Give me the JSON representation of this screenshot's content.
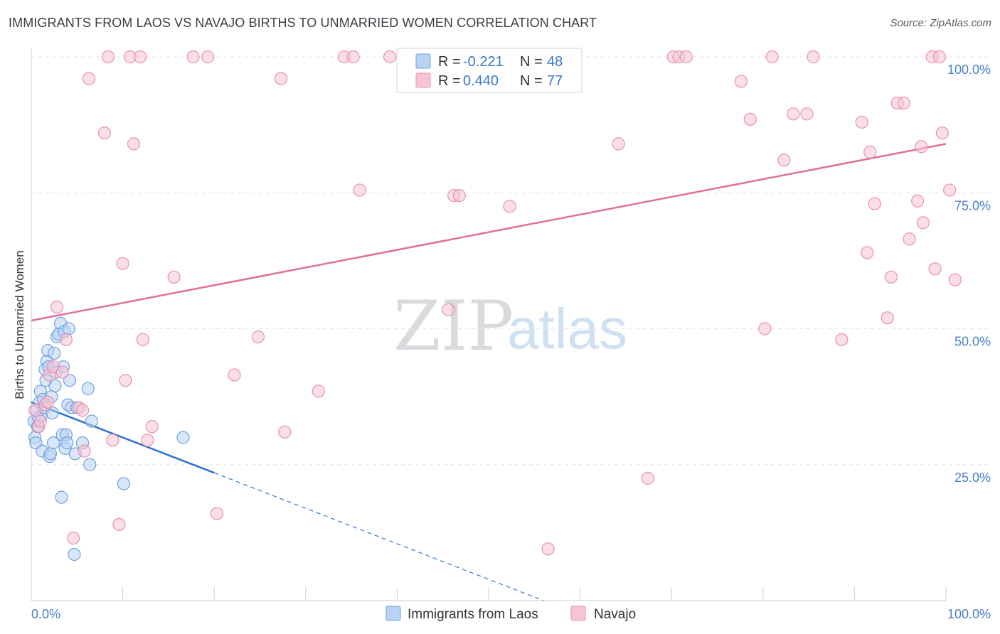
{
  "title": "IMMIGRANTS FROM LAOS VS NAVAJO BIRTHS TO UNMARRIED WOMEN CORRELATION CHART",
  "source": "Source: ZipAtlas.com",
  "watermark": {
    "zip": "ZIP",
    "atlas": "atlas"
  },
  "colors": {
    "blue": "#6fa3e0",
    "blue_fill": "#b8d2f3",
    "blue_line": "#2f72d2",
    "pink": "#ea8faf",
    "pink_fill": "#f6c5d5",
    "pink_line": "#e07098",
    "grid": "#e3e3e3",
    "axis_text": "#4a7fc4"
  },
  "legend": {
    "r_label": "R = ",
    "n_label": "N = ",
    "items": [
      {
        "r": "-0.221",
        "n": "48"
      },
      {
        "r": "0.440",
        "n": "77"
      }
    ]
  },
  "chart_data": {
    "type": "scatter",
    "title": "IMMIGRANTS FROM LAOS VS NAVAJO BIRTHS TO UNMARRIED WOMEN CORRELATION CHART",
    "xlabel": "",
    "ylabel": "Births to Unmarried Women",
    "xlim": [
      0,
      100
    ],
    "ylim": [
      0,
      100
    ],
    "x_tick_labels": [
      "0.0%",
      "100.0%"
    ],
    "y_ticks": [
      25,
      50,
      75,
      100
    ],
    "y_tick_labels": [
      "25.0%",
      "50.0%",
      "75.0%",
      "100.0%"
    ],
    "grid": "horizontal dashed",
    "legend_placement": "top-center",
    "series": [
      {
        "name": "Immigrants from Laos",
        "r": -0.221,
        "n": 48,
        "trend": {
          "x0": 0,
          "y0": 36.5,
          "x1": 20,
          "y1": 23.5,
          "dashed_to_x": 56,
          "dashed_to_y": 0
        },
        "points": [
          [
            0.3,
            33
          ],
          [
            0.4,
            30
          ],
          [
            0.5,
            29
          ],
          [
            0.6,
            35
          ],
          [
            0.7,
            32
          ],
          [
            0.8,
            33.5
          ],
          [
            0.9,
            36.5
          ],
          [
            1.0,
            38.5
          ],
          [
            1.1,
            34
          ],
          [
            1.2,
            27.5
          ],
          [
            1.3,
            37
          ],
          [
            1.4,
            35.5
          ],
          [
            1.5,
            42.5
          ],
          [
            1.6,
            40.5
          ],
          [
            1.7,
            44
          ],
          [
            1.8,
            46
          ],
          [
            1.9,
            43
          ],
          [
            2.0,
            26.5
          ],
          [
            2.1,
            27
          ],
          [
            2.2,
            37.5
          ],
          [
            2.3,
            34.5
          ],
          [
            2.4,
            29
          ],
          [
            2.5,
            45.5
          ],
          [
            2.6,
            39.5
          ],
          [
            2.7,
            42
          ],
          [
            2.8,
            48.5
          ],
          [
            3.0,
            49
          ],
          [
            3.2,
            51
          ],
          [
            3.3,
            19
          ],
          [
            3.4,
            30.5
          ],
          [
            3.5,
            43
          ],
          [
            3.6,
            49.5
          ],
          [
            3.7,
            28
          ],
          [
            3.8,
            30.5
          ],
          [
            3.9,
            29
          ],
          [
            4.0,
            36
          ],
          [
            4.1,
            50
          ],
          [
            4.2,
            40.5
          ],
          [
            4.4,
            35.5
          ],
          [
            4.7,
            8.5
          ],
          [
            4.8,
            27
          ],
          [
            5.0,
            35.5
          ],
          [
            5.6,
            29
          ],
          [
            6.2,
            39
          ],
          [
            6.4,
            25
          ],
          [
            6.6,
            33
          ],
          [
            10.1,
            21.5
          ],
          [
            16.6,
            30
          ]
        ]
      },
      {
        "name": "Navajo",
        "r": 0.44,
        "n": 77,
        "trend": {
          "x0": 0,
          "y0": 51.5,
          "x1": 100,
          "y1": 84
        },
        "points": [
          [
            0.4,
            35
          ],
          [
            0.8,
            32
          ],
          [
            1.0,
            33
          ],
          [
            1.5,
            36
          ],
          [
            1.8,
            36.5
          ],
          [
            2.0,
            41.5
          ],
          [
            2.4,
            43
          ],
          [
            2.8,
            54
          ],
          [
            3.4,
            42
          ],
          [
            3.8,
            48
          ],
          [
            4.6,
            11.5
          ],
          [
            5.2,
            35.5
          ],
          [
            5.6,
            35
          ],
          [
            5.8,
            27.5
          ],
          [
            6.3,
            96
          ],
          [
            8.0,
            86
          ],
          [
            8.4,
            100
          ],
          [
            8.9,
            29.5
          ],
          [
            9.6,
            14
          ],
          [
            10.0,
            62
          ],
          [
            10.3,
            40.5
          ],
          [
            10.8,
            100
          ],
          [
            11.2,
            84
          ],
          [
            11.9,
            100
          ],
          [
            12.2,
            48
          ],
          [
            12.7,
            29.5
          ],
          [
            13.2,
            32
          ],
          [
            15.6,
            59.5
          ],
          [
            17.7,
            100
          ],
          [
            19.3,
            100
          ],
          [
            20.3,
            16
          ],
          [
            22.2,
            41.5
          ],
          [
            24.8,
            48.5
          ],
          [
            27.3,
            96
          ],
          [
            27.7,
            31
          ],
          [
            31.4,
            38.5
          ],
          [
            34.2,
            100
          ],
          [
            35.2,
            100
          ],
          [
            35.9,
            75.5
          ],
          [
            39.2,
            100
          ],
          [
            45.6,
            53.5
          ],
          [
            46.2,
            74.5
          ],
          [
            46.8,
            74.5
          ],
          [
            52.3,
            72.5
          ],
          [
            56.5,
            9.5
          ],
          [
            64.2,
            84
          ],
          [
            67.4,
            22.5
          ],
          [
            70.2,
            100
          ],
          [
            70.8,
            100
          ],
          [
            71.6,
            100
          ],
          [
            77.6,
            95.5
          ],
          [
            78.6,
            88.5
          ],
          [
            80.2,
            50
          ],
          [
            81.0,
            100
          ],
          [
            82.3,
            81
          ],
          [
            83.3,
            89.5
          ],
          [
            84.8,
            89.5
          ],
          [
            85.5,
            100
          ],
          [
            88.6,
            48
          ],
          [
            90.8,
            88
          ],
          [
            91.4,
            64
          ],
          [
            91.7,
            82.5
          ],
          [
            92.2,
            73
          ],
          [
            93.6,
            52
          ],
          [
            94.0,
            59.5
          ],
          [
            94.7,
            91.5
          ],
          [
            95.4,
            91.5
          ],
          [
            96.0,
            66.5
          ],
          [
            96.9,
            73.5
          ],
          [
            97.3,
            83.5
          ],
          [
            97.5,
            69.5
          ],
          [
            98.5,
            100
          ],
          [
            98.8,
            61
          ],
          [
            99.3,
            100
          ],
          [
            99.6,
            86
          ],
          [
            100.4,
            75.5
          ],
          [
            101,
            59
          ]
        ]
      }
    ]
  },
  "bottom_legend": [
    {
      "label": "Immigrants from Laos"
    },
    {
      "label": "Navajo"
    }
  ]
}
